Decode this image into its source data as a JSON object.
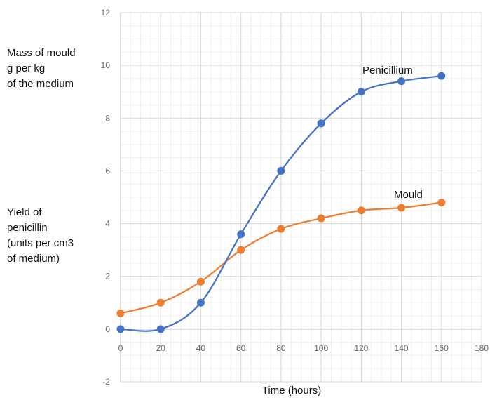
{
  "chart_data": {
    "type": "line",
    "title": "",
    "xlabel": "Time (hours)",
    "ylabel_mass": "Mass of mould\ng per kg\nof the medium",
    "ylabel_yield": "Yield of\npenicillin\n(units per cm3\nof medium)",
    "xlim": [
      0,
      180
    ],
    "ylim": [
      -2,
      12
    ],
    "x_ticks": [
      0,
      20,
      40,
      60,
      80,
      100,
      120,
      140,
      160,
      180
    ],
    "y_ticks": [
      -2,
      0,
      2,
      4,
      6,
      8,
      10,
      12
    ],
    "grid": true,
    "legend": "none",
    "series": [
      {
        "name": "Penicillium",
        "color": "#4472C4",
        "x": [
          0,
          20,
          40,
          60,
          80,
          100,
          120,
          140,
          160
        ],
        "values": [
          0,
          0,
          1,
          3.6,
          6,
          7.8,
          9,
          9.4,
          9.6
        ]
      },
      {
        "name": "Mould",
        "color": "#ED7D31",
        "x": [
          0,
          20,
          40,
          60,
          80,
          100,
          120,
          140,
          160
        ],
        "values": [
          0.6,
          1,
          1.8,
          3,
          3.8,
          4.2,
          4.5,
          4.6,
          4.8
        ]
      }
    ]
  }
}
